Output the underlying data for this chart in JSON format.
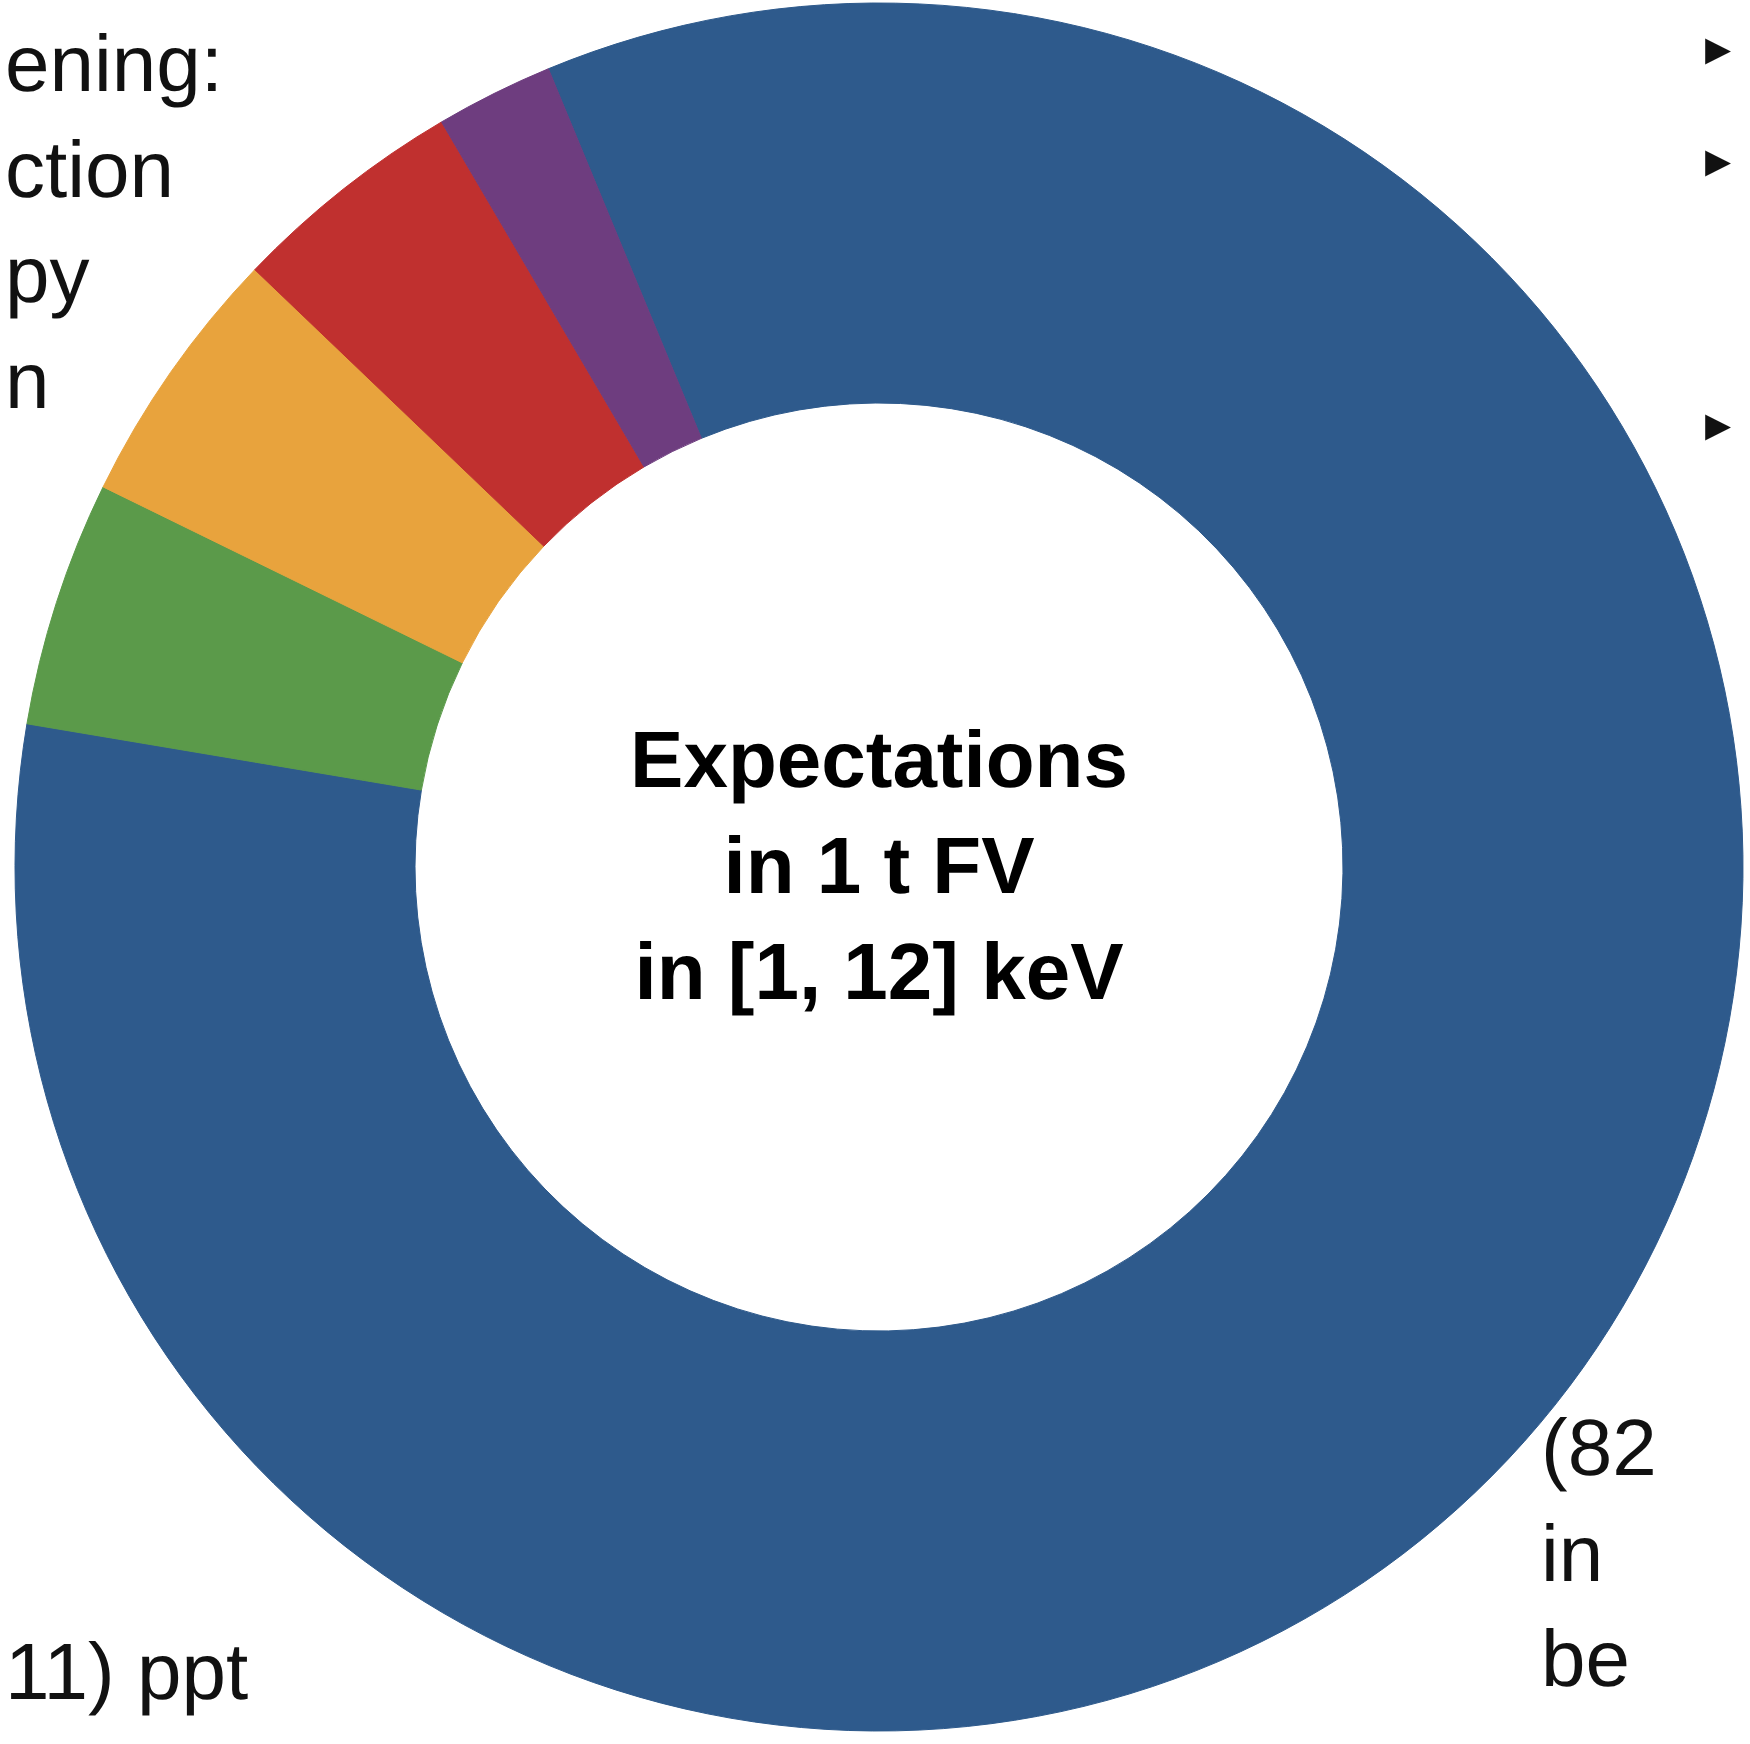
{
  "chart_data": {
    "type": "donut",
    "title": "Expectations\nin 1 t FV\nin [1, 12] keV",
    "categories": [
      null,
      null,
      null,
      null,
      null
    ],
    "values": [
      83.9,
      4.6,
      4.9,
      4.4,
      2.2
    ],
    "colors": [
      "#2e5a8c",
      "#5b9a4a",
      "#e8a33d",
      "#c0302f",
      "#6e3d7f"
    ],
    "annotations": [
      "ening:\nction\npy\nn",
      "11) ppt",
      "(82\nin\nbe",
      "▸",
      "▸",
      "▸"
    ]
  }
}
